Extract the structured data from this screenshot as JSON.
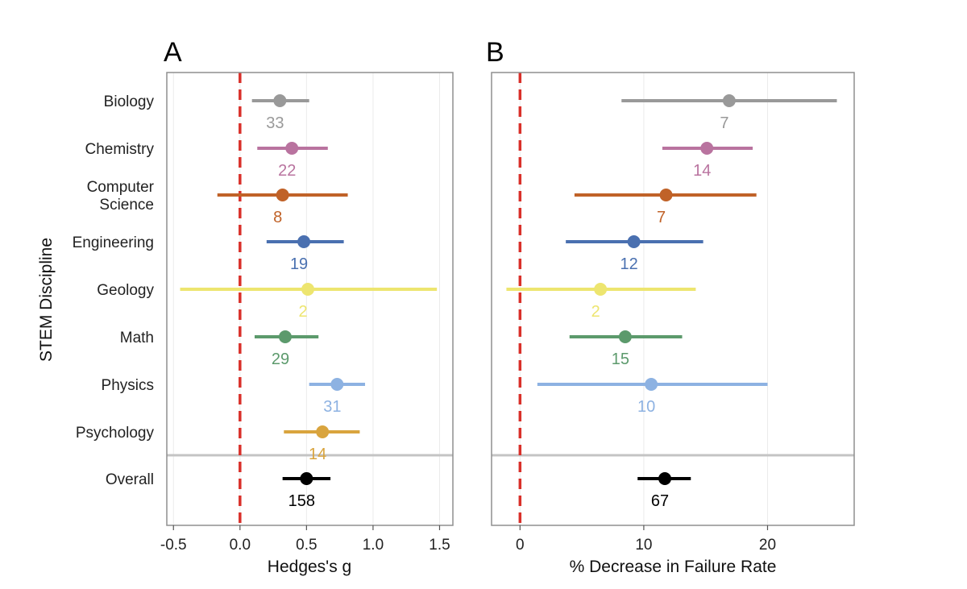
{
  "figure": {
    "y_axis_title": "STEM Discipline"
  },
  "chart_data": [
    {
      "panel": "A",
      "type": "scatter",
      "subtype": "forest-plot",
      "xlabel": "Hedges's g",
      "ylabel": "STEM Discipline",
      "xlim": [
        -0.55,
        1.6
      ],
      "xticks": [
        -0.5,
        0.0,
        0.5,
        1.0,
        1.5
      ],
      "xtick_labels": [
        "-0.5",
        "0.0",
        "0.5",
        "1.0",
        "1.5"
      ],
      "reference_line": 0,
      "grid": true,
      "categories": [
        "Biology",
        "Chemistry",
        "Computer Science",
        "Engineering",
        "Geology",
        "Math",
        "Physics",
        "Psychology",
        "Overall"
      ],
      "series": [
        {
          "category": "Biology",
          "estimate": 0.3,
          "ci_low": 0.09,
          "ci_high": 0.52,
          "n": "33",
          "color": "#999999"
        },
        {
          "category": "Chemistry",
          "estimate": 0.39,
          "ci_low": 0.13,
          "ci_high": 0.66,
          "n": "22",
          "color": "#b9739f"
        },
        {
          "category": "Computer Science",
          "estimate": 0.32,
          "ci_low": -0.17,
          "ci_high": 0.81,
          "n": "8",
          "color": "#c06228"
        },
        {
          "category": "Engineering",
          "estimate": 0.48,
          "ci_low": 0.2,
          "ci_high": 0.78,
          "n": "19",
          "color": "#4a70b0"
        },
        {
          "category": "Geology",
          "estimate": 0.51,
          "ci_low": -0.45,
          "ci_high": 1.48,
          "n": "2",
          "color": "#ede56f"
        },
        {
          "category": "Math",
          "estimate": 0.34,
          "ci_low": 0.11,
          "ci_high": 0.59,
          "n": "29",
          "color": "#5c9a6c"
        },
        {
          "category": "Physics",
          "estimate": 0.73,
          "ci_low": 0.52,
          "ci_high": 0.94,
          "n": "31",
          "color": "#8db2e2"
        },
        {
          "category": "Psychology",
          "estimate": 0.62,
          "ci_low": 0.33,
          "ci_high": 0.9,
          "n": "14",
          "color": "#d9a43e"
        },
        {
          "category": "Overall",
          "estimate": 0.5,
          "ci_low": 0.32,
          "ci_high": 0.68,
          "n": "158",
          "color": "#000000"
        }
      ]
    },
    {
      "panel": "B",
      "type": "scatter",
      "subtype": "forest-plot",
      "xlabel": "% Decrease in Failure Rate",
      "ylabel": "",
      "xlim": [
        -2.3,
        27
      ],
      "xticks": [
        0,
        10,
        20
      ],
      "xtick_labels": [
        "0",
        "10",
        "20"
      ],
      "reference_line": 0,
      "grid": true,
      "categories": [
        "Biology",
        "Chemistry",
        "Computer Science",
        "Engineering",
        "Geology",
        "Math",
        "Physics",
        "Psychology",
        "Overall"
      ],
      "series": [
        {
          "category": "Biology",
          "estimate": 16.9,
          "ci_low": 8.2,
          "ci_high": 25.6,
          "n": "7",
          "color": "#999999"
        },
        {
          "category": "Chemistry",
          "estimate": 15.1,
          "ci_low": 11.5,
          "ci_high": 18.8,
          "n": "14",
          "color": "#b9739f"
        },
        {
          "category": "Computer Science",
          "estimate": 11.8,
          "ci_low": 4.4,
          "ci_high": 19.1,
          "n": "7",
          "color": "#c06228"
        },
        {
          "category": "Engineering",
          "estimate": 9.2,
          "ci_low": 3.7,
          "ci_high": 14.8,
          "n": "12",
          "color": "#4a70b0"
        },
        {
          "category": "Geology",
          "estimate": 6.5,
          "ci_low": -1.1,
          "ci_high": 14.2,
          "n": "2",
          "color": "#ede56f"
        },
        {
          "category": "Math",
          "estimate": 8.5,
          "ci_low": 4.0,
          "ci_high": 13.1,
          "n": "15",
          "color": "#5c9a6c"
        },
        {
          "category": "Physics",
          "estimate": 10.6,
          "ci_low": 1.4,
          "ci_high": 20.0,
          "n": "10",
          "color": "#8db2e2"
        },
        {
          "category": "Overall",
          "estimate": 11.7,
          "ci_low": 9.5,
          "ci_high": 13.8,
          "n": "67",
          "color": "#000000"
        }
      ]
    }
  ]
}
